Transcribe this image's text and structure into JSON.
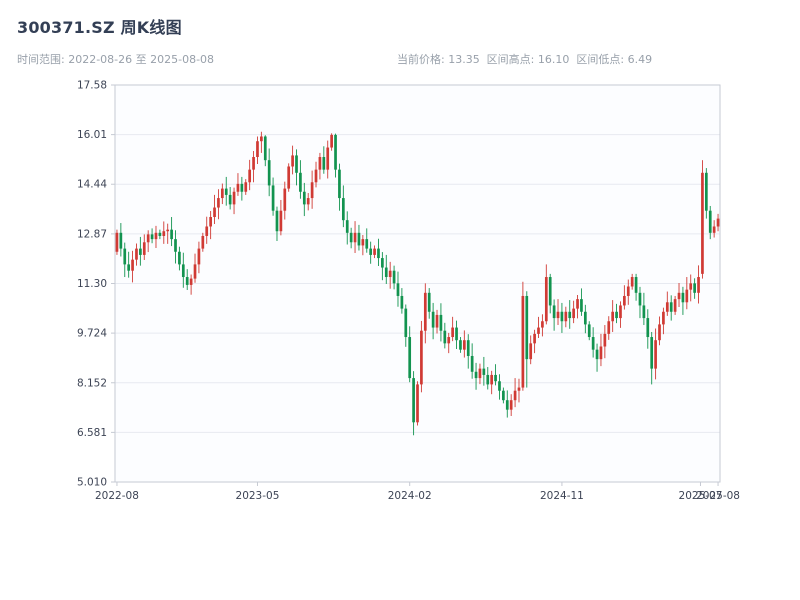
{
  "header": {
    "title": "300371.SZ 周K线图",
    "range_label": "时间范围: 2022-08-26 至 2025-08-08",
    "stats_label": "当前价格: 13.35  区间高点: 16.10  区间低点: 6.49"
  },
  "chart_data": {
    "type": "candlestick",
    "title": "300371.SZ 周K线图",
    "symbol": "300371.SZ",
    "interval": "weekly",
    "date_start": "2022-08-26",
    "date_end": "2025-08-08",
    "current_price": 13.35,
    "range_high": 16.1,
    "range_low": 6.49,
    "ylim": [
      5.01,
      17.58
    ],
    "grid": true,
    "yticks": [
      {
        "label": "17.58",
        "value": 17.58
      },
      {
        "label": "16.01",
        "value": 16.009
      },
      {
        "label": "14.44",
        "value": 14.438
      },
      {
        "label": "12.87",
        "value": 12.866
      },
      {
        "label": "11.30",
        "value": 11.295
      },
      {
        "label": "9.724",
        "value": 9.724
      },
      {
        "label": "8.152",
        "value": 8.152
      },
      {
        "label": "6.581",
        "value": 6.581
      },
      {
        "label": "5.010",
        "value": 5.01
      }
    ],
    "xticks": [
      {
        "label": "2022-08",
        "pos": 0
      },
      {
        "label": "2023-05",
        "pos": 36
      },
      {
        "label": "2024-02",
        "pos": 75
      },
      {
        "label": "2024-11",
        "pos": 114
      },
      {
        "label": "2025-07",
        "pos": 149.5
      },
      {
        "label": "2025-08",
        "pos": 154
      }
    ],
    "colors": {
      "up": "#d03a34",
      "down": "#12934f",
      "grid": "#e7eaf1",
      "frame": "#c6cad3",
      "tick_text": "#3d4455",
      "plot_bg": "#fcfdff"
    },
    "candles": [
      [
        12.3,
        13,
        12.2,
        12.9
      ],
      [
        12.9,
        13.21,
        12.15,
        12.4
      ],
      [
        12.4,
        12.59,
        11.5,
        11.9
      ],
      [
        11.9,
        12.3,
        11.48,
        11.7
      ],
      [
        11.7,
        12.33,
        11.33,
        12.05
      ],
      [
        12.05,
        12.56,
        11.86,
        12.4
      ],
      [
        12.4,
        12.77,
        11.86,
        12.2
      ],
      [
        12.2,
        12.85,
        12.04,
        12.6
      ],
      [
        12.6,
        12.98,
        12.29,
        12.85
      ],
      [
        12.85,
        13.04,
        12.57,
        12.7
      ],
      [
        12.7,
        13.12,
        12.42,
        12.9
      ],
      [
        12.9,
        13,
        12.7,
        12.8
      ],
      [
        12.8,
        13.26,
        12.55,
        12.95
      ],
      [
        12.95,
        13.19,
        12.55,
        13
      ],
      [
        13,
        13.4,
        12.48,
        12.7
      ],
      [
        12.7,
        12.98,
        11.93,
        12.3
      ],
      [
        12.3,
        12.46,
        11.71,
        11.9
      ],
      [
        11.9,
        12.27,
        11.16,
        11.5
      ],
      [
        11.5,
        11.75,
        11.09,
        11.25
      ],
      [
        11.25,
        11.58,
        10.94,
        11.45
      ],
      [
        11.45,
        12.24,
        11.32,
        11.9
      ],
      [
        11.9,
        12.62,
        11.62,
        12.4
      ],
      [
        12.4,
        12.9,
        12.3,
        12.8
      ],
      [
        12.8,
        13.41,
        12.55,
        13.1
      ],
      [
        13.1,
        13.59,
        12.7,
        13.4
      ],
      [
        13.4,
        14.1,
        13.18,
        13.7
      ],
      [
        13.7,
        14.28,
        13.33,
        14
      ],
      [
        14,
        14.46,
        13.81,
        14.3
      ],
      [
        14.3,
        14.67,
        13.76,
        14.1
      ],
      [
        14.1,
        14.35,
        13.64,
        13.8
      ],
      [
        13.8,
        14.33,
        13.49,
        14.2
      ],
      [
        14.2,
        14.79,
        14.07,
        14.45
      ],
      [
        14.45,
        14.67,
        13.92,
        14.2
      ],
      [
        14.2,
        14.6,
        14.1,
        14.5
      ],
      [
        14.5,
        15.21,
        14.25,
        14.9
      ],
      [
        14.9,
        15.49,
        14.5,
        15.3
      ],
      [
        15.3,
        15.95,
        15.08,
        15.8
      ],
      [
        15.8,
        16.1,
        15.43,
        15.95
      ],
      [
        15.95,
        15.99,
        15.01,
        15.2
      ],
      [
        15.2,
        15.57,
        14.06,
        14.4
      ],
      [
        14.4,
        14.65,
        13.44,
        13.6
      ],
      [
        13.6,
        13.73,
        12.64,
        12.95
      ],
      [
        12.95,
        13.94,
        12.82,
        13.6
      ],
      [
        13.6,
        14.52,
        13.32,
        14.3
      ],
      [
        14.3,
        15.1,
        14.2,
        15
      ],
      [
        15,
        15.66,
        14.75,
        15.35
      ],
      [
        15.35,
        15.54,
        14.4,
        14.8
      ],
      [
        14.8,
        15.2,
        13.98,
        14.2
      ],
      [
        14.2,
        14.48,
        13.43,
        13.8
      ],
      [
        13.8,
        14.16,
        13.61,
        14
      ],
      [
        14,
        14.87,
        13.66,
        14.5
      ],
      [
        14.5,
        15.15,
        14.34,
        14.9
      ],
      [
        14.9,
        15.43,
        14.59,
        15.3
      ],
      [
        15.3,
        15.64,
        14.77,
        14.9
      ],
      [
        14.9,
        15.82,
        14.62,
        15.6
      ],
      [
        15.6,
        16.05,
        15.5,
        16
      ],
      [
        16,
        16.04,
        14.65,
        14.9
      ],
      [
        14.9,
        15.09,
        13.6,
        14
      ],
      [
        14,
        14.4,
        13.08,
        13.3
      ],
      [
        13.3,
        13.58,
        12.53,
        12.9
      ],
      [
        12.9,
        13.06,
        12.41,
        12.6
      ],
      [
        12.6,
        13.27,
        12.26,
        12.9
      ],
      [
        12.9,
        13.15,
        12.34,
        12.5
      ],
      [
        12.5,
        12.83,
        12.19,
        12.7
      ],
      [
        12.7,
        13.04,
        12.27,
        12.4
      ],
      [
        12.4,
        12.62,
        11.92,
        12.2
      ],
      [
        12.2,
        12.5,
        12.1,
        12.4
      ],
      [
        12.4,
        12.71,
        11.85,
        12.1
      ],
      [
        12.1,
        12.29,
        11.4,
        11.8
      ],
      [
        11.8,
        12.2,
        11.28,
        11.5
      ],
      [
        11.5,
        11.98,
        11.13,
        11.7
      ],
      [
        11.7,
        11.86,
        11.11,
        11.3
      ],
      [
        11.3,
        11.67,
        10.56,
        10.9
      ],
      [
        10.9,
        11.15,
        10.34,
        10.5
      ],
      [
        10.5,
        10.63,
        9.29,
        9.6
      ],
      [
        9.6,
        9.94,
        8.17,
        8.3
      ],
      [
        8.3,
        8.52,
        6.49,
        6.9
      ],
      [
        6.9,
        8.2,
        6.8,
        8.1
      ],
      [
        8.1,
        10.11,
        7.85,
        9.8
      ],
      [
        9.8,
        11.3,
        9.4,
        11
      ],
      [
        11,
        11.15,
        10.18,
        10.4
      ],
      [
        10.4,
        10.68,
        9.53,
        9.9
      ],
      [
        9.9,
        10.46,
        9.71,
        10.3
      ],
      [
        10.3,
        10.67,
        9.46,
        9.8
      ],
      [
        9.8,
        10.05,
        9.24,
        9.4
      ],
      [
        9.4,
        9.73,
        9.09,
        9.6
      ],
      [
        9.6,
        10.24,
        9.47,
        9.9
      ],
      [
        9.9,
        10.12,
        9.22,
        9.5
      ],
      [
        9.5,
        9.6,
        9.1,
        9.2
      ],
      [
        9.2,
        9.81,
        8.95,
        9.5
      ],
      [
        9.5,
        9.69,
        8.6,
        9
      ],
      [
        9,
        9.4,
        8.28,
        8.5
      ],
      [
        8.5,
        8.78,
        7.93,
        8.3
      ],
      [
        8.3,
        8.76,
        8.11,
        8.6
      ],
      [
        8.6,
        8.97,
        8.06,
        8.4
      ],
      [
        8.4,
        8.65,
        7.94,
        8.1
      ],
      [
        8.1,
        8.53,
        7.79,
        8.4
      ],
      [
        8.4,
        8.74,
        8.07,
        8.2
      ],
      [
        8.2,
        8.42,
        7.62,
        7.9
      ],
      [
        7.9,
        8,
        7.5,
        7.6
      ],
      [
        7.6,
        7.91,
        7.05,
        7.3
      ],
      [
        7.3,
        7.79,
        7.1,
        7.6
      ],
      [
        7.6,
        8.3,
        7.38,
        7.9
      ],
      [
        7.9,
        8.28,
        7.53,
        8
      ],
      [
        8,
        11.35,
        7.9,
        10.9
      ],
      [
        10.9,
        11.05,
        8,
        8.9
      ],
      [
        8.9,
        9.65,
        8.74,
        9.4
      ],
      [
        9.4,
        9.83,
        9.09,
        9.7
      ],
      [
        9.7,
        10.24,
        9.57,
        9.9
      ],
      [
        9.9,
        10.32,
        9.62,
        10.1
      ],
      [
        10.1,
        11.9,
        10,
        11.5
      ],
      [
        11.5,
        11.6,
        10.35,
        10.6
      ],
      [
        10.6,
        10.79,
        9.8,
        10.2
      ],
      [
        10.2,
        10.8,
        9.98,
        10.4
      ],
      [
        10.4,
        10.68,
        9.73,
        10.1
      ],
      [
        10.1,
        10.56,
        9.91,
        10.4
      ],
      [
        10.4,
        10.77,
        9.86,
        10.2
      ],
      [
        10.2,
        10.75,
        10.04,
        10.5
      ],
      [
        10.5,
        10.93,
        10.19,
        10.8
      ],
      [
        10.8,
        11.14,
        10.27,
        10.4
      ],
      [
        10.4,
        10.62,
        9.72,
        10
      ],
      [
        10,
        10.1,
        9.5,
        9.6
      ],
      [
        9.6,
        9.91,
        8.95,
        9.2
      ],
      [
        9.2,
        9.39,
        8.5,
        8.9
      ],
      [
        8.9,
        9.7,
        8.68,
        9.3
      ],
      [
        9.3,
        9.98,
        8.93,
        9.7
      ],
      [
        9.7,
        10.26,
        9.51,
        10.1
      ],
      [
        10.1,
        10.77,
        9.76,
        10.4
      ],
      [
        10.4,
        10.65,
        10.04,
        10.2
      ],
      [
        10.2,
        10.73,
        9.89,
        10.6
      ],
      [
        10.6,
        11.24,
        10.47,
        10.9
      ],
      [
        10.9,
        11.42,
        10.62,
        11.2
      ],
      [
        11.2,
        11.6,
        11.1,
        11.5
      ],
      [
        11.5,
        11.6,
        10.75,
        11
      ],
      [
        11,
        11.19,
        10.2,
        10.6
      ],
      [
        10.6,
        11,
        9.98,
        10.2
      ],
      [
        10.2,
        10.48,
        9.23,
        9.6
      ],
      [
        9.6,
        9.76,
        8.1,
        8.6
      ],
      [
        8.6,
        9.87,
        8.26,
        9.5
      ],
      [
        9.5,
        10.25,
        9.34,
        10
      ],
      [
        10,
        10.53,
        9.69,
        10.4
      ],
      [
        10.4,
        11.04,
        10.27,
        10.7
      ],
      [
        10.7,
        10.92,
        10.12,
        10.4
      ],
      [
        10.4,
        10.9,
        10.3,
        10.8
      ],
      [
        10.8,
        11.31,
        10.55,
        11
      ],
      [
        11,
        11.19,
        10.3,
        10.7
      ],
      [
        10.7,
        11.5,
        10.48,
        11.1
      ],
      [
        11.1,
        11.58,
        10.73,
        11.3
      ],
      [
        11.3,
        11.46,
        10.81,
        11
      ],
      [
        11,
        11.87,
        10.66,
        11.5
      ],
      [
        11.6,
        15.2,
        11.45,
        14.8
      ],
      [
        14.8,
        14.95,
        13.35,
        13.6
      ],
      [
        13.6,
        13.75,
        12.7,
        12.9
      ],
      [
        12.9,
        13.3,
        12.75,
        13.1
      ],
      [
        13.1,
        13.5,
        12.95,
        13.35
      ]
    ]
  }
}
